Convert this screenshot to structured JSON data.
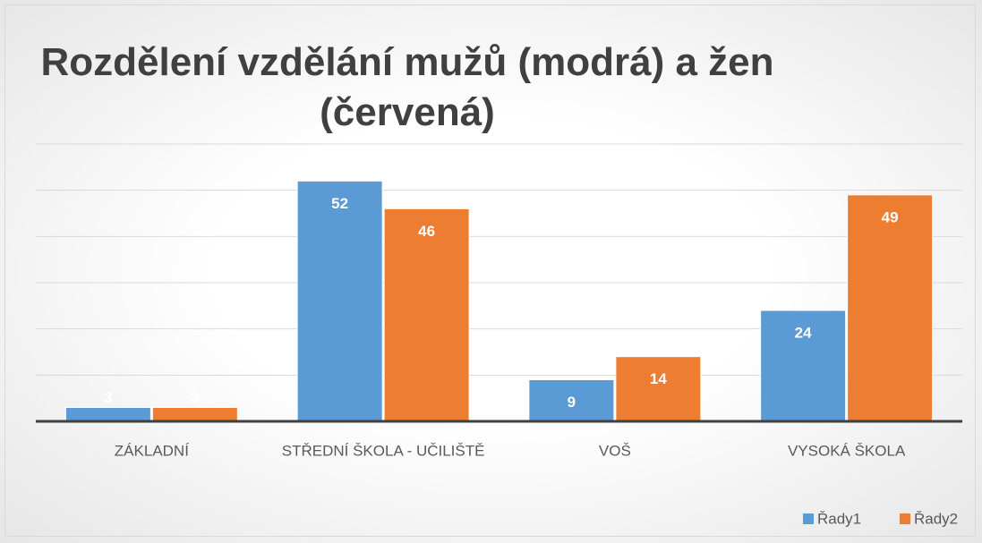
{
  "chart_data": {
    "type": "bar",
    "title": "Rozdělení vzdělání mužů (modrá) a žen (červená)",
    "categories": [
      "ZÁKLADNÍ",
      "STŘEDNÍ ŠKOLA - UČILIŠTĚ",
      "VOŠ",
      "VYSOKÁ ŠKOLA"
    ],
    "series": [
      {
        "name": "Řady1",
        "color": "#5b9bd5",
        "values": [
          3,
          52,
          9,
          24
        ]
      },
      {
        "name": "Řady2",
        "color": "#ed7d31",
        "values": [
          3,
          46,
          14,
          49
        ]
      }
    ],
    "ylim": [
      0,
      60
    ],
    "yticks": [
      0,
      10,
      20,
      30,
      40,
      50,
      60
    ],
    "grid": true,
    "legend": "bottom-right"
  }
}
